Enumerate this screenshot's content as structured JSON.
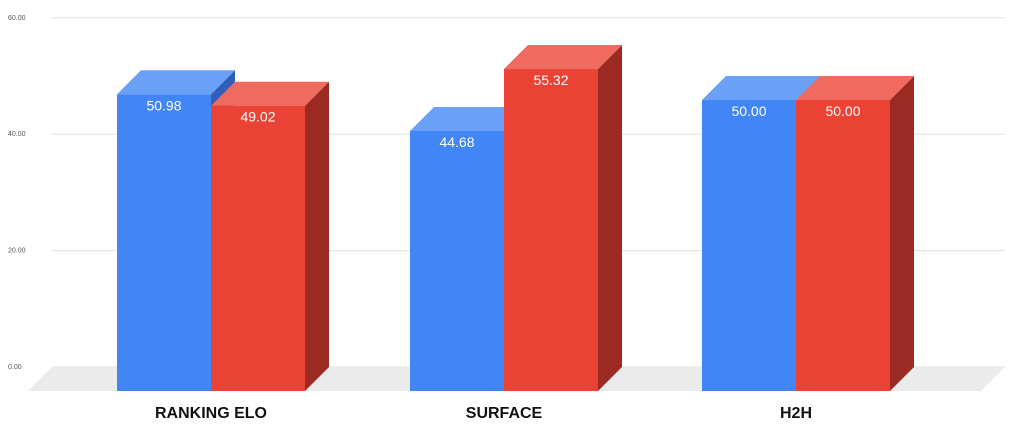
{
  "chart_data": {
    "type": "bar",
    "style": "3d",
    "categories": [
      "RANKING ELO",
      "SURFACE",
      "H2H"
    ],
    "series": [
      {
        "values": [
          50.98,
          44.68,
          50.0
        ],
        "labels": [
          "50.98",
          "44.68",
          "50.00"
        ]
      },
      {
        "values": [
          49.02,
          55.32,
          50.0
        ],
        "labels": [
          "49.02",
          "55.32",
          "50.00"
        ]
      }
    ],
    "yticks": [
      "0.00",
      "20.00",
      "40.00",
      "60.00"
    ],
    "ylim": [
      0,
      60
    ],
    "grid": true,
    "legend": "none",
    "title": "",
    "xlabel": "",
    "ylabel": ""
  },
  "colors": {
    "series_front": [
      "#4285f4",
      "#ea4335"
    ],
    "series_top": [
      "#6aa0f6",
      "#ef6b5f"
    ],
    "series_side": [
      "#2f5fb8",
      "#9a2a22"
    ],
    "gridline": "#e0e0e0",
    "floor": "#ebebeb"
  }
}
